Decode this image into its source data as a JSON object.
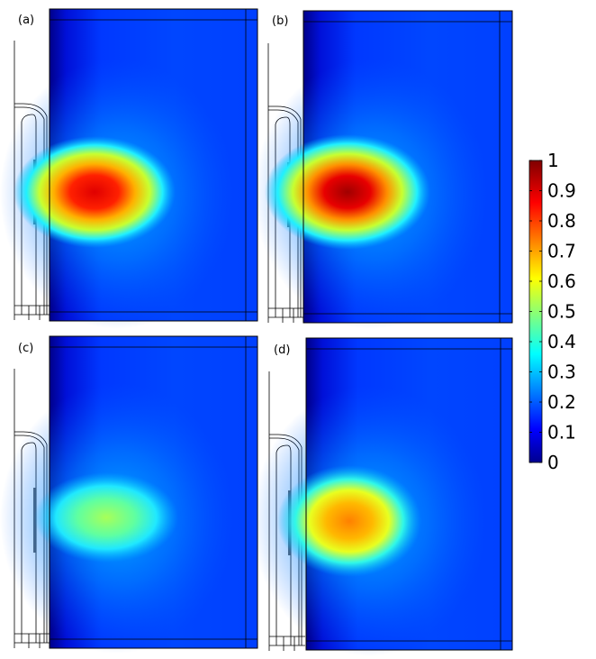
{
  "figure": {
    "panels": [
      {
        "label": "(a)",
        "peak": 0.95
      },
      {
        "label": "(b)",
        "peak": 1.0
      },
      {
        "label": "(c)",
        "peak": 0.5
      },
      {
        "label": "(d)",
        "peak": 0.7
      }
    ],
    "colorbar": {
      "colormap": "jet",
      "min": 0,
      "max": 1,
      "ticks": [
        "0",
        "0.1",
        "0.2",
        "0.3",
        "0.4",
        "0.5",
        "0.6",
        "0.7",
        "0.8",
        "0.9",
        "1"
      ]
    }
  }
}
